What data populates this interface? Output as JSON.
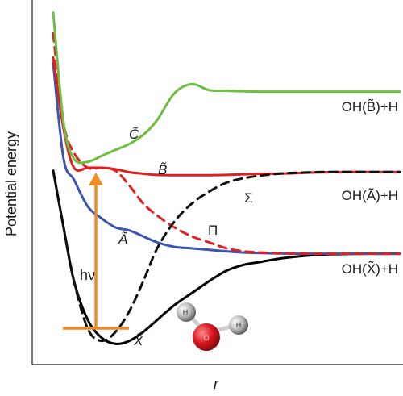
{
  "chart_data": {
    "type": "line",
    "title": "",
    "xlabel": "r",
    "ylabel": "Potential energy",
    "grid": false,
    "ylim": [
      0,
      100
    ],
    "x": [
      0.0,
      0.03,
      0.06,
      0.1,
      0.14,
      0.18,
      0.22,
      0.26,
      0.3,
      0.35,
      0.4,
      0.45,
      0.5,
      0.55,
      0.6,
      0.65,
      0.7,
      0.75,
      0.8,
      0.85,
      0.9,
      0.95,
      1.0
    ],
    "series": [
      {
        "key": "x_state",
        "style": "solid",
        "color": "#000000",
        "y": [
          59,
          40,
          22,
          9,
          3,
          1,
          2,
          5,
          9,
          14,
          18,
          22,
          25.5,
          27.5,
          28.5,
          29.5,
          30.2,
          30.7,
          31.0,
          31.1,
          31.2,
          31.2,
          31.2
        ]
      },
      {
        "key": "a_state",
        "style": "solid",
        "color": "#3b55b0",
        "y": [
          95,
          63,
          56,
          47,
          43,
          40,
          39,
          37,
          35,
          33.5,
          33,
          32.5,
          32,
          31.6,
          31.4,
          31.3,
          31.2,
          31.2,
          31.2,
          31.2,
          31.2,
          31.2,
          31.2
        ]
      },
      {
        "key": "b_state",
        "style": "solid",
        "color": "#e02020",
        "y": [
          97,
          73,
          60,
          60,
          60,
          59.5,
          58.5,
          58,
          57.6,
          57.5,
          57.5,
          57.5,
          57.6,
          57.8,
          58,
          58,
          58.2,
          58.4,
          58.5,
          58.6,
          58.6,
          58.6,
          58.6
        ]
      },
      {
        "key": "pi_state",
        "style": "dashed",
        "color": "#e02020",
        "y": [
          105,
          75,
          65,
          60,
          60,
          59,
          54,
          48,
          44,
          40,
          37,
          35,
          33,
          32,
          31.6,
          31.4,
          31.3,
          31.2,
          31.2,
          31.2,
          31.2,
          31.2,
          31.2
        ]
      },
      {
        "key": "sigma_state",
        "style": "dashed",
        "color": "#111111",
        "y": [
          59,
          40,
          22,
          6,
          2,
          5,
          12,
          22,
          33,
          42,
          48,
          52,
          55,
          56.5,
          57.4,
          58,
          58.3,
          58.5,
          58.6,
          58.6,
          58.6,
          58.6,
          58.6
        ]
      },
      {
        "key": "c_state",
        "style": "solid",
        "color": "#6cbf3f",
        "y": [
          112,
          75,
          63,
          62,
          64,
          66,
          68,
          71,
          76,
          85,
          88,
          86,
          85.8,
          85.6,
          85.5,
          85.5,
          85.5,
          85.5,
          85.5,
          85.5,
          85.5,
          85.5,
          85.5
        ]
      }
    ],
    "state_labels": {
      "c": "C̃",
      "b": "B̃",
      "a": "Ã",
      "x": "X̃",
      "sigma": "Σ",
      "pi": "Π"
    },
    "asymptote_labels": [
      "OH(B̃)+H",
      "OH(Ã)+H",
      "OH(X̃)+H"
    ],
    "photon_label": "hν",
    "arrow_color": "#f08a24",
    "molecule": {
      "atoms": [
        {
          "label": "H",
          "color": "#b8b8b8"
        },
        {
          "label": "O",
          "color": "#d8141b"
        },
        {
          "label": "H",
          "color": "#b8b8b8"
        }
      ]
    }
  }
}
